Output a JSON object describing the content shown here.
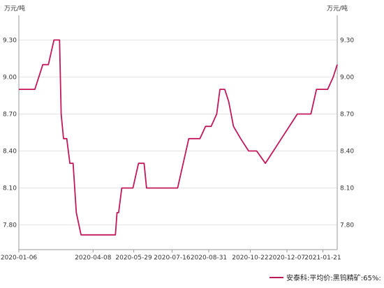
{
  "chart_data": {
    "type": "line",
    "unit_left": "万元/吨",
    "unit_right": "万元/吨",
    "ylim": [
      7.6,
      9.5
    ],
    "y_ticks": [
      "7.80",
      "8.10",
      "8.40",
      "8.70",
      "9.00",
      "9.30"
    ],
    "x_ticks": [
      "2020-01-06",
      "2020-04-08",
      "2020-05-29",
      "2020-07-16",
      "2020-08-31",
      "2020-10-22",
      "2020-12-07",
      "2021-01-21"
    ],
    "grid": true,
    "legend_position": "bottom",
    "series": [
      {
        "name": "安泰科:平均价:黑钨精矿:65%:",
        "color": "#c2185b",
        "x": [
          "2020-01-06",
          "2020-01-16",
          "2020-01-26",
          "2020-02-05",
          "2020-02-12",
          "2020-02-19",
          "2020-02-24",
          "2020-02-26",
          "2020-02-28",
          "2020-03-02",
          "2020-03-06",
          "2020-03-10",
          "2020-03-14",
          "2020-03-18",
          "2020-03-24",
          "2020-03-26",
          "2020-04-03",
          "2020-04-10",
          "2020-04-20",
          "2020-04-30",
          "2020-05-06",
          "2020-05-08",
          "2020-05-10",
          "2020-05-14",
          "2020-05-18",
          "2020-05-28",
          "2020-06-04",
          "2020-06-11",
          "2020-06-14",
          "2020-06-24",
          "2020-07-09",
          "2020-07-16",
          "2020-07-23",
          "2020-07-30",
          "2020-08-06",
          "2020-08-13",
          "2020-08-20",
          "2020-08-27",
          "2020-09-03",
          "2020-09-10",
          "2020-09-14",
          "2020-09-20",
          "2020-09-25",
          "2020-10-01",
          "2020-10-10",
          "2020-10-20",
          "2020-10-30",
          "2020-11-10",
          "2020-11-20",
          "2020-11-30",
          "2020-12-10",
          "2020-12-20",
          "2020-12-30",
          "2021-01-06",
          "2021-01-13",
          "2021-01-20",
          "2021-01-27",
          "2021-02-03",
          "2021-02-08"
        ],
        "values": [
          8.9,
          8.9,
          8.9,
          9.1,
          9.1,
          9.3,
          9.3,
          9.3,
          8.7,
          8.5,
          8.5,
          8.3,
          8.3,
          7.9,
          7.72,
          7.72,
          7.72,
          7.72,
          7.72,
          7.72,
          7.72,
          7.9,
          7.9,
          8.1,
          8.1,
          8.1,
          8.3,
          8.3,
          8.1,
          8.1,
          8.1,
          8.1,
          8.1,
          8.3,
          8.5,
          8.5,
          8.5,
          8.6,
          8.6,
          8.7,
          8.9,
          8.9,
          8.8,
          8.6,
          8.5,
          8.4,
          8.4,
          8.3,
          8.4,
          8.5,
          8.6,
          8.7,
          8.7,
          8.7,
          8.9,
          8.9,
          8.9,
          9.0,
          9.1
        ]
      }
    ]
  }
}
